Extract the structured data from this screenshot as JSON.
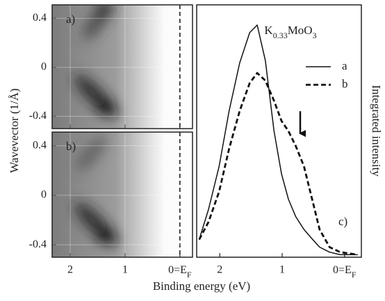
{
  "chart_data": [
    {
      "type": "heatmap",
      "panel_label": "a)",
      "ylabel": "Wavevector (1/Å)",
      "xlim": [
        2.33,
        -0.23
      ],
      "ylim": [
        -0.5,
        0.51
      ],
      "xticks": [
        2,
        1,
        {
          "value": 0,
          "label": "0=EF"
        }
      ],
      "yticks": [
        0.4,
        0,
        -0.4
      ],
      "grid": true
    },
    {
      "type": "heatmap",
      "panel_label": "b)",
      "xlim": [
        2.33,
        -0.23
      ],
      "ylim": [
        -0.5,
        0.51
      ],
      "xticks": [
        2,
        1,
        {
          "value": 0,
          "label": "0=EF"
        }
      ],
      "yticks": [
        0.4,
        0,
        -0.4
      ],
      "grid": true
    },
    {
      "type": "line",
      "title": "K0.33MoO3",
      "panel_label": "c)",
      "ylabel": "Integrated intensity",
      "xlabel": "Binding energy (eV)",
      "xlim": [
        2.37,
        -0.27
      ],
      "ylim": [
        0,
        1
      ],
      "xticks": [
        2,
        1,
        {
          "value": 0,
          "label": "0=EF"
        }
      ],
      "x": [
        2.33,
        2.18,
        2.01,
        1.85,
        1.68,
        1.52,
        1.4,
        1.27,
        1.13,
        1.01,
        0.9,
        0.78,
        0.65,
        0.51,
        0.4,
        0.24,
        0.07,
        -0.21
      ],
      "series": [
        {
          "name": "a",
          "color": "#111111",
          "style": "solid",
          "values": [
            0.07,
            0.19,
            0.36,
            0.58,
            0.77,
            0.89,
            0.92,
            0.78,
            0.5,
            0.33,
            0.23,
            0.16,
            0.11,
            0.07,
            0.04,
            0.02,
            0.01,
            0.01
          ]
        },
        {
          "name": "b",
          "color": "#111111",
          "style": "dashed",
          "values": [
            0.07,
            0.14,
            0.26,
            0.43,
            0.58,
            0.69,
            0.73,
            0.7,
            0.62,
            0.54,
            0.5,
            0.44,
            0.36,
            0.22,
            0.11,
            0.04,
            0.02,
            0.01
          ]
        }
      ],
      "legend": "upper right"
    }
  ]
}
